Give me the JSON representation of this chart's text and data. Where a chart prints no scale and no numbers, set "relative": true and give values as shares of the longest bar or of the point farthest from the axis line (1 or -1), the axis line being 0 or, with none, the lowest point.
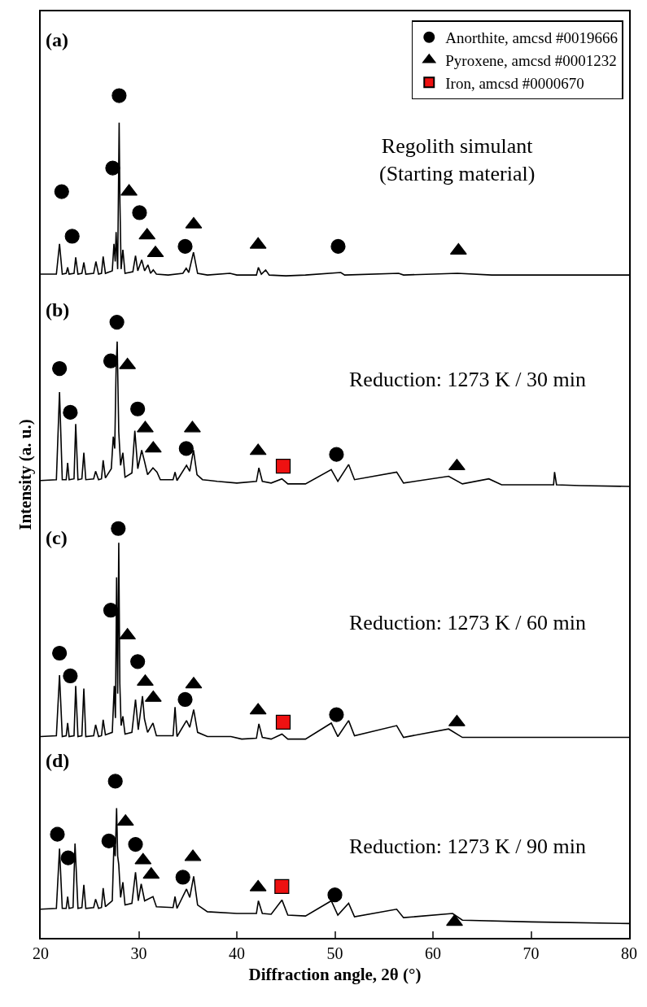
{
  "chart_data": {
    "type": "line",
    "relative": true,
    "xlabel": "Diffraction angle, 2θ (°)",
    "ylabel": "Intensity (a. u.)",
    "xlim": [
      20,
      80
    ],
    "xticks": [
      20,
      30,
      40,
      50,
      60,
      70,
      80
    ],
    "legend": "top right",
    "annotations": [
      "(a)",
      "(b)",
      "(c)",
      "(d)",
      "Regolith simulant\n(Starting material)",
      "Reduction: 1273 K / 30 min",
      "Reduction: 1273 K / 60 min",
      "Reduction: 1273 K / 90 min"
    ],
    "series": [
      {
        "color": "#000000",
        "x": [
          20,
          21.6,
          21.92,
          22.2,
          22.6,
          22.75,
          22.9,
          23.4,
          23.57,
          23.8,
          24.2,
          24.4,
          24.6,
          25.4,
          25.63,
          25.9,
          26.2,
          26.37,
          26.6,
          27.3,
          27.47,
          27.6,
          27.69,
          27.85,
          28.0,
          28.08,
          28.2,
          28.38,
          28.6,
          29.4,
          29.67,
          29.9,
          30.3,
          30.6,
          30.94,
          31.2,
          31.48,
          31.8,
          33.0,
          34.5,
          34.84,
          35.1,
          35.58,
          36.0,
          37.0,
          39.3,
          40.0,
          42.0,
          42.2,
          42.5,
          42.94,
          43.3,
          45.0,
          47.0,
          50.6,
          51.0,
          56.5,
          57.0,
          62.5,
          66.0,
          70.0,
          75.0,
          80.0
        ],
        "values": [
          0.788,
          0.788,
          0.824,
          0.788,
          0.789,
          0.796,
          0.788,
          0.789,
          0.808,
          0.788,
          0.789,
          0.802,
          0.788,
          0.789,
          0.803,
          0.788,
          0.789,
          0.809,
          0.789,
          0.792,
          0.824,
          0.803,
          0.838,
          0.794,
          0.968,
          0.874,
          0.794,
          0.817,
          0.789,
          0.791,
          0.81,
          0.792,
          0.805,
          0.792,
          0.799,
          0.789,
          0.793,
          0.788,
          0.787,
          0.789,
          0.795,
          0.79,
          0.814,
          0.789,
          0.787,
          0.789,
          0.787,
          0.787,
          0.796,
          0.788,
          0.793,
          0.787,
          0.786,
          0.787,
          0.79,
          0.787,
          0.789,
          0.787,
          0.789,
          0.787,
          0.787,
          0.787,
          0.787
        ]
      },
      {
        "color": "#000000",
        "x": [
          20,
          21.6,
          21.92,
          22.2,
          22.6,
          22.75,
          22.9,
          23.4,
          23.57,
          23.8,
          24.2,
          24.4,
          24.6,
          25.4,
          25.6,
          25.9,
          26.2,
          26.37,
          26.6,
          27.2,
          27.4,
          27.55,
          27.69,
          27.8,
          27.96,
          28.15,
          28.38,
          28.6,
          29.3,
          29.6,
          29.9,
          30.3,
          30.58,
          30.9,
          31.45,
          31.86,
          32.2,
          33.5,
          33.7,
          33.9,
          34.87,
          35.2,
          35.58,
          35.94,
          36.5,
          38.0,
          40.0,
          42.0,
          42.25,
          42.6,
          43.5,
          44.6,
          45.2,
          47.0,
          49.63,
          50.3,
          51.4,
          52.0,
          56.3,
          57.0,
          61.6,
          63.0,
          65.7,
          67.0,
          72.3,
          72.4,
          72.6,
          75.0,
          80.0
        ],
        "values": [
          0.543,
          0.544,
          0.648,
          0.544,
          0.544,
          0.564,
          0.544,
          0.545,
          0.61,
          0.544,
          0.545,
          0.576,
          0.544,
          0.545,
          0.554,
          0.544,
          0.545,
          0.567,
          0.546,
          0.557,
          0.595,
          0.581,
          0.676,
          0.708,
          0.601,
          0.561,
          0.576,
          0.547,
          0.552,
          0.602,
          0.557,
          0.579,
          0.566,
          0.55,
          0.558,
          0.553,
          0.544,
          0.544,
          0.553,
          0.543,
          0.561,
          0.554,
          0.579,
          0.55,
          0.544,
          0.542,
          0.54,
          0.542,
          0.558,
          0.542,
          0.54,
          0.545,
          0.539,
          0.539,
          0.556,
          0.542,
          0.562,
          0.544,
          0.553,
          0.54,
          0.548,
          0.539,
          0.545,
          0.538,
          0.538,
          0.553,
          0.538,
          0.537,
          0.536
        ]
      },
      {
        "color": "#000000",
        "x": [
          20,
          21.6,
          21.92,
          22.2,
          22.6,
          22.75,
          22.9,
          23.4,
          23.57,
          23.8,
          24.2,
          24.4,
          24.6,
          25.4,
          25.6,
          25.9,
          26.2,
          26.37,
          26.6,
          27.3,
          27.5,
          27.62,
          27.74,
          27.85,
          27.96,
          28.07,
          28.2,
          28.38,
          28.6,
          29.3,
          29.67,
          29.95,
          30.38,
          30.58,
          30.9,
          31.45,
          31.8,
          33.5,
          33.7,
          33.9,
          34.87,
          35.2,
          35.6,
          36.0,
          37.0,
          39.4,
          40.5,
          42.0,
          42.25,
          42.6,
          43.5,
          44.6,
          45.2,
          47.0,
          49.63,
          50.3,
          51.4,
          52.0,
          56.3,
          57.0,
          61.6,
          63.0,
          70.0,
          80.0
        ],
        "values": [
          0.239,
          0.24,
          0.312,
          0.239,
          0.24,
          0.255,
          0.239,
          0.24,
          0.299,
          0.239,
          0.24,
          0.296,
          0.239,
          0.24,
          0.253,
          0.239,
          0.24,
          0.259,
          0.241,
          0.244,
          0.299,
          0.261,
          0.428,
          0.29,
          0.469,
          0.302,
          0.252,
          0.263,
          0.242,
          0.244,
          0.283,
          0.247,
          0.287,
          0.26,
          0.244,
          0.255,
          0.24,
          0.24,
          0.274,
          0.239,
          0.258,
          0.25,
          0.271,
          0.244,
          0.239,
          0.239,
          0.236,
          0.237,
          0.254,
          0.238,
          0.236,
          0.242,
          0.236,
          0.236,
          0.255,
          0.239,
          0.258,
          0.24,
          0.252,
          0.238,
          0.248,
          0.238,
          0.238,
          0.238
        ]
      },
      {
        "color": "#000000",
        "x": [
          20,
          21.6,
          21.92,
          22.2,
          22.6,
          22.75,
          22.9,
          23.3,
          23.5,
          23.8,
          24.2,
          24.4,
          24.6,
          25.4,
          25.6,
          25.9,
          26.2,
          26.37,
          26.6,
          27.3,
          27.47,
          27.6,
          27.74,
          27.85,
          27.96,
          28.15,
          28.38,
          28.6,
          29.3,
          29.67,
          29.95,
          30.25,
          30.6,
          31.45,
          31.8,
          33.5,
          33.7,
          33.9,
          34.87,
          35.2,
          35.6,
          36.0,
          37.0,
          40.0,
          42.0,
          42.2,
          42.6,
          43.5,
          44.6,
          45.2,
          47.0,
          49.63,
          50.3,
          51.4,
          52.0,
          56.3,
          57.0,
          62.0,
          63.0,
          70.0,
          80.0
        ],
        "values": [
          0.034,
          0.035,
          0.106,
          0.035,
          0.035,
          0.049,
          0.035,
          0.036,
          0.112,
          0.035,
          0.036,
          0.063,
          0.035,
          0.036,
          0.046,
          0.035,
          0.036,
          0.059,
          0.037,
          0.044,
          0.112,
          0.097,
          0.154,
          0.097,
          0.087,
          0.048,
          0.066,
          0.039,
          0.041,
          0.078,
          0.044,
          0.064,
          0.044,
          0.049,
          0.037,
          0.036,
          0.049,
          0.035,
          0.058,
          0.048,
          0.073,
          0.039,
          0.031,
          0.029,
          0.029,
          0.044,
          0.029,
          0.028,
          0.045,
          0.027,
          0.026,
          0.044,
          0.027,
          0.041,
          0.025,
          0.034,
          0.024,
          0.029,
          0.021,
          0.019,
          0.017
        ]
      },
      {
        "type": "scatter",
        "name": "Anorthite, amcsd #0019666",
        "color": "#000000",
        "marker": "circle",
        "x": [
          22.14,
          23.21,
          27.34,
          28.0,
          30.08,
          34.73,
          50.33,
          21.92,
          23.02,
          27.77,
          27.14,
          29.89,
          34.84,
          50.16,
          21.92,
          23.02,
          27.91,
          27.14,
          29.89,
          34.73,
          50.16,
          21.7,
          22.8,
          27.61,
          26.95,
          29.67,
          34.5,
          50.0
        ],
        "values": [
          0.886,
          0.833,
          0.914,
          1.0,
          0.861,
          0.821,
          0.821,
          0.676,
          0.624,
          0.731,
          0.685,
          0.628,
          0.581,
          0.574,
          0.338,
          0.311,
          0.486,
          0.389,
          0.328,
          0.283,
          0.265,
          0.123,
          0.095,
          0.186,
          0.115,
          0.111,
          0.072,
          0.051
        ]
      },
      {
        "type": "scatter",
        "name": "Pyroxene, amcsd #0001232",
        "color": "#000000",
        "marker": "triangle",
        "x": [
          29.01,
          30.85,
          31.7,
          35.6,
          42.17,
          62.6,
          28.85,
          30.66,
          31.48,
          35.47,
          42.17,
          62.44,
          28.85,
          30.66,
          31.48,
          35.6,
          42.17,
          62.44,
          28.65,
          30.44,
          31.27,
          35.52,
          42.17,
          62.2
        ],
        "values": [
          0.886,
          0.834,
          0.813,
          0.847,
          0.823,
          0.816,
          0.68,
          0.605,
          0.581,
          0.605,
          0.578,
          0.56,
          0.359,
          0.304,
          0.285,
          0.301,
          0.27,
          0.256,
          0.138,
          0.092,
          0.075,
          0.096,
          0.06,
          0.019
        ]
      },
      {
        "type": "scatter",
        "name": "Iron, amcsd #0000670",
        "color": "#ee1111",
        "marker": "square",
        "x": [
          44.73,
          44.73,
          44.59
        ],
        "values": [
          0.56,
          0.256,
          0.061
        ]
      }
    ]
  }
}
